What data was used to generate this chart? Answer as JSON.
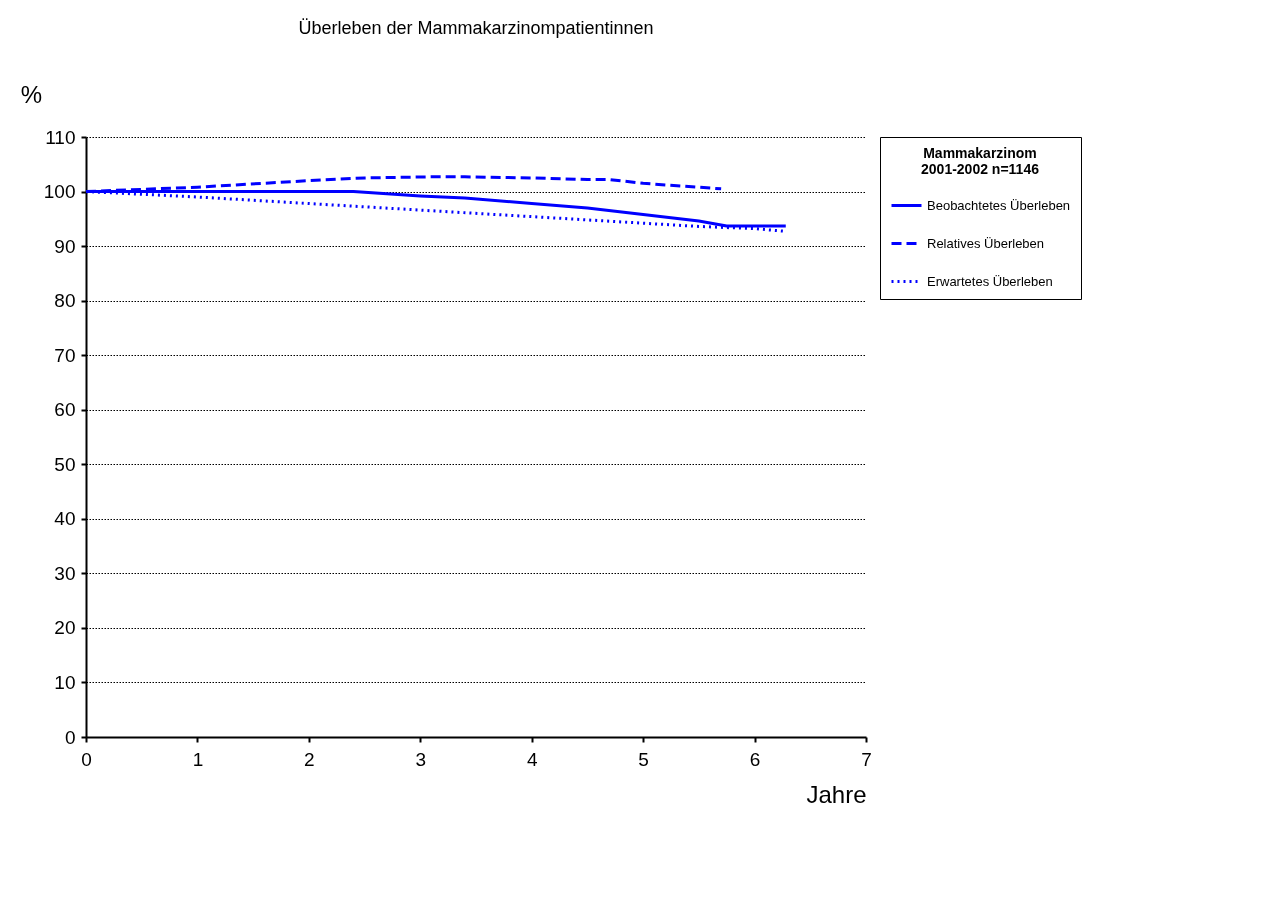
{
  "chart_data": {
    "type": "line",
    "title": "Überleben der Mammakarzinompatientinnen",
    "xlabel": "Jahre",
    "ylabel": "%",
    "legend_title": "Mammakarzinom",
    "annotations": [
      "2001-2002 n=1146"
    ],
    "xlim": [
      0,
      7
    ],
    "xticks": [
      0,
      1,
      2,
      3,
      4,
      5,
      6,
      7
    ],
    "ylim": [
      0,
      110
    ],
    "yticks": [
      0,
      10,
      20,
      30,
      40,
      50,
      60,
      70,
      80,
      90,
      100,
      110
    ],
    "grid": "y",
    "legend": "right",
    "series": [
      {
        "name": "Beobachtetes Überleben",
        "color": "#0000ff",
        "line_style": "solid",
        "x": [
          0,
          1,
          2,
          2.4,
          3,
          3.4,
          4,
          4.5,
          5,
          5.5,
          5.75,
          6.28
        ],
        "values": [
          100,
          100,
          100,
          100,
          99.2,
          98.8,
          97.8,
          97,
          95.8,
          94.6,
          93.7,
          93.7
        ]
      },
      {
        "name": "Relatives Überleben",
        "color": "#0000ff",
        "line_style": "dashed",
        "x": [
          0,
          1,
          2,
          2.5,
          3.1,
          3.4,
          4,
          4.5,
          4.7,
          5,
          5.5,
          5.7
        ],
        "values": [
          100,
          100.8,
          102,
          102.5,
          102.7,
          102.7,
          102.5,
          102.2,
          102.2,
          101.5,
          100.8,
          100.5
        ]
      },
      {
        "name": "Erwartetes Überleben",
        "color": "#0000ff",
        "line_style": "dotted",
        "x": [
          0,
          1,
          2,
          3,
          4,
          5,
          5.5,
          6,
          6.28
        ],
        "values": [
          100,
          99,
          97.8,
          96.6,
          95.4,
          94.2,
          93.6,
          93.2,
          92.7
        ]
      }
    ]
  }
}
